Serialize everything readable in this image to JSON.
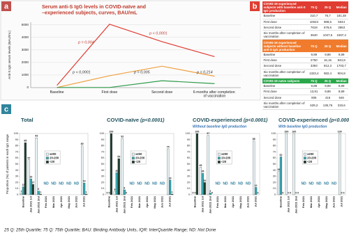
{
  "labels": {
    "a": "a",
    "b": "b",
    "c": "c"
  },
  "footnote": "25 Q: 25th Quartile; 75 Q: 75th Quartile; BAU: Binding Antibody Units, IQR: InterQuartile Range; ND: Not Done",
  "table": {
    "sections": [
      {
        "color": "#e03c31",
        "header": [
          "COVID-19 experienced subjects with baseline anti-S IgG production",
          "75 Q",
          "25 Q",
          "Median"
        ],
        "rows": [
          [
            "Baseline",
            "310,7",
            "76,7",
            "181,48"
          ],
          [
            "First dose",
            "10023",
            "988,5",
            "5044"
          ],
          [
            "Second dose",
            "7618",
            "678,6",
            "3653"
          ],
          [
            "Six months after completion of vaccination",
            "3640",
            "1047,6",
            "2467,4"
          ]
        ]
      },
      {
        "color": "#f07b2c",
        "header": [
          "COVID-19 experienced subjects without baseline anti-S IgG production",
          "75 Q",
          "25 Q",
          "Median"
        ],
        "rows": [
          [
            "Baseline",
            "9,89",
            "9,89",
            "9,89"
          ],
          [
            "First dose",
            "2750",
            "16,16",
            "943,8"
          ],
          [
            "Second dose",
            "3393",
            "812,3",
            "1703,7"
          ],
          [
            "Six months after completion of vaccination",
            "1323,4",
            "582,4",
            "904,8"
          ]
        ]
      },
      {
        "color": "#2aa84a",
        "header": [
          "COVID-19 naïve subjects",
          "75 Q",
          "25 Q",
          "Median"
        ],
        "rows": [
          [
            "Baseline",
            "9,89",
            "9,89",
            "9,89"
          ],
          [
            "First dose",
            "13,91",
            "9,89",
            "9,89"
          ],
          [
            "Second dose",
            "806",
            "416",
            "546"
          ],
          [
            "Six months after completion of vaccination",
            "629,2",
            "136,76",
            "319,6"
          ]
        ]
      }
    ]
  },
  "chart_data": [
    {
      "type": "line",
      "title": "Serum anti-S IgG levels in COVID-naïve and –experienced subjects, curves, BAU/mL",
      "y_label": "Anti-S IgG serum levels (BAU/mL)",
      "categories": [
        "Baseline",
        "First dose",
        "Second dose",
        "6-months after completion of vaccination"
      ],
      "series": [
        {
          "color": "#e03c31",
          "values": [
            181.48,
            5044,
            3653,
            2467.4
          ]
        },
        {
          "color": "#f0a040",
          "values": [
            9.89,
            943.8,
            1703.7,
            904.8
          ]
        },
        {
          "color": "#2e9a4a",
          "values": [
            9.89,
            9.89,
            546,
            319.6
          ]
        }
      ],
      "ylim": [
        0,
        5200
      ],
      "yticks": [
        0,
        1000,
        2000,
        3000,
        4000,
        5000
      ],
      "grid": true,
      "annotations": [
        "p = 0,004",
        "p < 0,0001",
        "p < 0,0001",
        "p = 0,005",
        "p = 0,214"
      ]
    },
    {
      "type": "bar",
      "title": "Total",
      "y_label": "Proportion (%) of patients in each IgG range",
      "categories": [
        "Baseline",
        "Jan 2021 1st",
        "Jan 2021 2nd",
        "Feb 2021",
        "Mar 2021",
        "Apr 2021",
        "May 2021",
        "Jun 2021",
        "Jul 2021"
      ],
      "series": [
        {
          "name": "≥200",
          "color": "#eaf5f8",
          "values": [
            2,
            57,
            93,
            null,
            null,
            null,
            null,
            null,
            80
          ]
        },
        {
          "name": "20-200",
          "color": "#3aa6b0",
          "values": [
            13,
            26,
            6,
            null,
            null,
            null,
            null,
            null,
            19
          ]
        },
        {
          "name": "<20",
          "color": "#1e3d2e",
          "values": [
            85,
            17,
            1,
            null,
            null,
            null,
            null,
            null,
            1
          ]
        }
      ],
      "ylim": [
        0,
        100
      ],
      "yticks": [
        0,
        10,
        20,
        30,
        40,
        50,
        60,
        70,
        80,
        90,
        100
      ],
      "nd_label": "ND"
    },
    {
      "type": "bar",
      "title": "COVID-naïve",
      "p_value": "(p<0.0001)",
      "categories": [
        "Baseline",
        "Jan 2021 1st",
        "Jan 2021 2nd",
        "Feb 2021",
        "Mar 2021",
        "Apr 2021",
        "May 2021",
        "Jun 2021",
        "Jul 2021"
      ],
      "series": [
        {
          "name": "≥200",
          "color": "#eaf5f8",
          "values": [
            0,
            5,
            92,
            null,
            null,
            null,
            null,
            null,
            75
          ]
        },
        {
          "name": "20-200",
          "color": "#3aa6b0",
          "values": [
            0,
            36,
            8,
            null,
            null,
            null,
            null,
            null,
            24
          ]
        },
        {
          "name": "<20",
          "color": "#1e3d2e",
          "values": [
            100,
            59,
            0,
            null,
            null,
            null,
            null,
            null,
            1
          ]
        }
      ],
      "ylim": [
        0,
        100
      ],
      "yticks": [
        0,
        10,
        20,
        30,
        40,
        50,
        60,
        70,
        80,
        90,
        100
      ],
      "nd_label": "ND"
    },
    {
      "type": "bar",
      "title": "COVID-experienced",
      "p_value": "(p<0.0001)",
      "subtitle": "Without baseline IgG production",
      "categories": [
        "Baseline",
        "Jan 2021 1st",
        "Jan 2021 2nd",
        "Feb 2021",
        "Mar 2021",
        "Apr 2021",
        "May 2021",
        "Jun 2021",
        "Jul 2021"
      ],
      "series": [
        {
          "name": "≥200",
          "color": "#eaf5f8",
          "values": [
            0,
            45,
            97,
            null,
            null,
            null,
            null,
            null,
            88
          ]
        },
        {
          "name": "20-200",
          "color": "#3aa6b0",
          "values": [
            0,
            35,
            3,
            null,
            null,
            null,
            null,
            null,
            12
          ]
        },
        {
          "name": "<20",
          "color": "#1e3d2e",
          "values": [
            100,
            20,
            0,
            null,
            null,
            null,
            null,
            null,
            0
          ]
        }
      ],
      "ylim": [
        0,
        100
      ],
      "yticks": [
        0,
        10,
        20,
        30,
        40,
        50,
        60,
        70,
        80,
        90,
        100
      ],
      "nd_label": "ND"
    },
    {
      "type": "bar",
      "title": "COVID-experienced",
      "p_value": "(p<0.0001)",
      "subtitle": "With baseline IgG production",
      "categories": [
        "Baseline",
        "Jan 2021 1st",
        "Jan 2021 2nd",
        "Feb 2021",
        "Mar 2021",
        "Apr 2021",
        "May 2021",
        "Jun 2021",
        "Jul 2021"
      ],
      "series": [
        {
          "name": "≥200",
          "color": "#eaf5f8",
          "values": [
            38,
            100,
            100,
            null,
            null,
            null,
            null,
            null,
            100
          ]
        },
        {
          "name": "20-200",
          "color": "#3aa6b0",
          "values": [
            62,
            0,
            0,
            null,
            null,
            null,
            null,
            null,
            0
          ]
        },
        {
          "name": "<20",
          "color": "#1e3d2e",
          "values": [
            0,
            0,
            0,
            null,
            null,
            null,
            null,
            null,
            0
          ]
        }
      ],
      "ylim": [
        0,
        100
      ],
      "yticks": [
        0,
        10,
        20,
        30,
        40,
        50,
        60,
        70,
        80,
        90,
        100
      ],
      "nd_label": "ND"
    }
  ]
}
